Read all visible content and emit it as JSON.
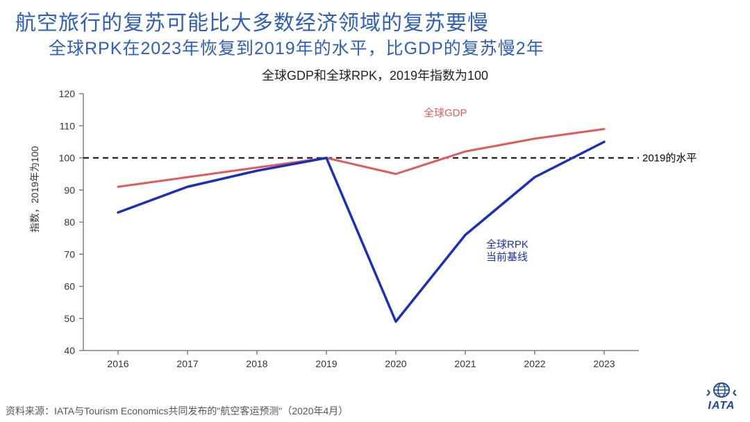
{
  "title": "航空旅行的复苏可能比大多数经济领域的复苏要慢",
  "subtitle": "全球RPK在2023年恢复到2019年的水平，比GDP的复苏慢2年",
  "chart": {
    "type": "line",
    "title": "全球GDP和全球RPK，2019年指数为100",
    "yaxis_label": "指数，2019年为100",
    "xlim": [
      2015.5,
      2023.5
    ],
    "ylim": [
      40,
      120
    ],
    "xticks": [
      2016,
      2017,
      2018,
      2019,
      2020,
      2021,
      2022,
      2023
    ],
    "yticks": [
      40,
      50,
      60,
      70,
      80,
      90,
      100,
      110,
      120
    ],
    "tick_fontsize": 14,
    "tick_color": "#333333",
    "axis_color": "#808080",
    "tick_length": 6,
    "background": "#ffffff",
    "reference_line": {
      "y": 100,
      "label": "2019的水平",
      "color": "#000000",
      "dash": "8,6",
      "width": 2,
      "label_x": 2023.55,
      "label_fontsize": 15
    },
    "series_gdp": {
      "label": "全球GDP",
      "color": "#e05a5a",
      "width": 3,
      "x": [
        2016,
        2017,
        2018,
        2019,
        2020,
        2021,
        2022,
        2023
      ],
      "y": [
        91,
        94,
        97,
        100,
        95,
        102,
        106,
        109
      ],
      "label_x": 2020.4,
      "label_y": 113,
      "label_fontsize": 15
    },
    "series_rpk": {
      "label_line1": "全球RPK",
      "label_line2": "当前基线",
      "color": "#1b2fbb",
      "width": 3.5,
      "x": [
        2016,
        2017,
        2018,
        2019,
        2020,
        2021,
        2022,
        2023
      ],
      "y": [
        83,
        91,
        96,
        100,
        49,
        76,
        94,
        105
      ],
      "label_x": 2021.3,
      "label_y": 72,
      "label_fontsize": 15
    }
  },
  "footnote": "资料来源：IATA与Tourism Economics共同发布的\"航空客运预测\"（2020年4月）",
  "logo": {
    "text": "IATA",
    "color": "#1b4a9c"
  }
}
